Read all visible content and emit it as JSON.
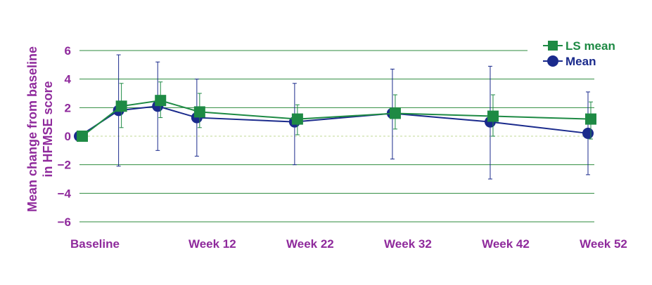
{
  "chart_data": {
    "type": "line",
    "ylabel_lines": [
      "Mean change from baseline",
      "in HFMSE score"
    ],
    "ylim": [
      -6,
      6
    ],
    "yticks": [
      6,
      4,
      2,
      0,
      -2,
      -4,
      -6
    ],
    "xlim": [
      0,
      52
    ],
    "x_tick_labels": [
      {
        "x": 0,
        "label": "Baseline"
      },
      {
        "x": 12,
        "label": "Week 12"
      },
      {
        "x": 22,
        "label": "Week 22"
      },
      {
        "x": 32,
        "label": "Week 32"
      },
      {
        "x": 42,
        "label": "Week 42"
      },
      {
        "x": 52,
        "label": "Week 52"
      }
    ],
    "grid": true,
    "legend_position": "top-right",
    "series": [
      {
        "name": "LS mean",
        "marker": "square",
        "color": "#1e8a44",
        "points": [
          {
            "x": 0,
            "y": 0.0,
            "lo": 0.0,
            "hi": 0.0
          },
          {
            "x": 4,
            "y": 2.1,
            "lo": 0.6,
            "hi": 3.7
          },
          {
            "x": 8,
            "y": 2.5,
            "lo": 1.3,
            "hi": 3.8
          },
          {
            "x": 12,
            "y": 1.7,
            "lo": 0.6,
            "hi": 3.0
          },
          {
            "x": 22,
            "y": 1.2,
            "lo": 0.1,
            "hi": 2.2
          },
          {
            "x": 32,
            "y": 1.6,
            "lo": 0.5,
            "hi": 2.9
          },
          {
            "x": 42,
            "y": 1.4,
            "lo": 0.0,
            "hi": 2.9
          },
          {
            "x": 52,
            "y": 1.2,
            "lo": -0.2,
            "hi": 2.4
          }
        ]
      },
      {
        "name": "Mean",
        "marker": "circle",
        "color": "#1a2a8c",
        "points": [
          {
            "x": 0,
            "y": 0.0,
            "lo": 0.0,
            "hi": 0.0
          },
          {
            "x": 4,
            "y": 1.8,
            "lo": -2.1,
            "hi": 5.7
          },
          {
            "x": 8,
            "y": 2.1,
            "lo": -1.0,
            "hi": 5.2
          },
          {
            "x": 12,
            "y": 1.3,
            "lo": -1.4,
            "hi": 4.0
          },
          {
            "x": 22,
            "y": 1.0,
            "lo": -2.0,
            "hi": 3.7
          },
          {
            "x": 32,
            "y": 1.6,
            "lo": -1.6,
            "hi": 4.7
          },
          {
            "x": 42,
            "y": 1.0,
            "lo": -3.0,
            "hi": 4.9
          },
          {
            "x": 52,
            "y": 0.2,
            "lo": -2.7,
            "hi": 3.1
          }
        ]
      }
    ]
  },
  "colors": {
    "label": "#8f2a9c",
    "grid": "#2e8b3e",
    "zero_line": "#d6e6b8",
    "ls_mean": "#1e8a44",
    "mean": "#1a2a8c"
  }
}
